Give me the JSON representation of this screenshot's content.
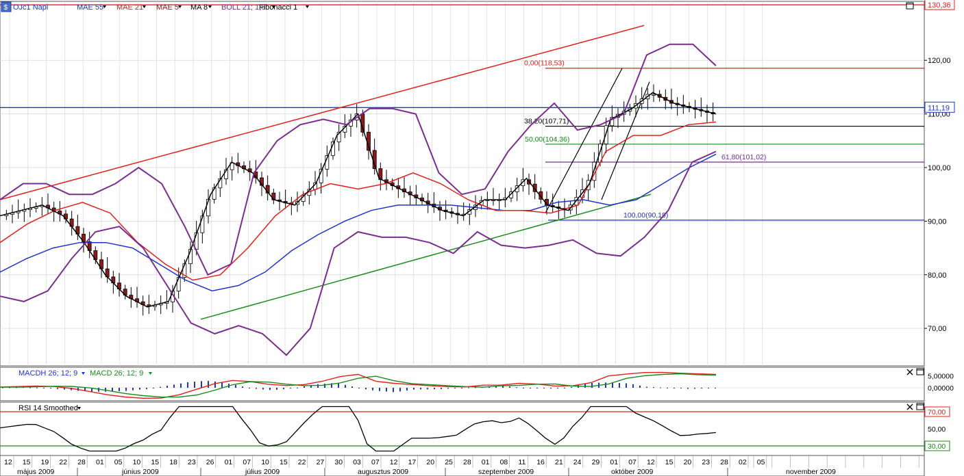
{
  "toolbar": {
    "instrument": "OJc1 Napi",
    "indicators": [
      {
        "label": "MAE 55",
        "color": "#1f35c8"
      },
      {
        "label": "MAE 21",
        "color": "#e0201c"
      },
      {
        "label": "MAE 5",
        "color": "#8b1a1a"
      },
      {
        "label": "MA 8",
        "color": "#000000"
      },
      {
        "label": "BOLL 21; 1,8",
        "color": "#7b2d8f"
      },
      {
        "label": "Fibonacci 1",
        "color": "#000000"
      }
    ]
  },
  "price_scale": {
    "ticks": [
      "120,00",
      "110,00",
      "100,00",
      "90,00",
      "80,00",
      "70,00"
    ],
    "tick_values": [
      120,
      110,
      100,
      90,
      80,
      70
    ],
    "badge_top": "130,36",
    "badge_current": "111,19"
  },
  "chart_data": {
    "type": "candlestick",
    "ylim": [
      63,
      131
    ],
    "date_labels": [
      "12",
      "15",
      "19",
      "22",
      "28",
      "01",
      "05",
      "10",
      "15",
      "18",
      "23",
      "26",
      "01",
      "07",
      "10",
      "15",
      "22",
      "27",
      "30",
      "03",
      "07",
      "12",
      "17",
      "20",
      "25",
      "28",
      "01",
      "08",
      "11",
      "16",
      "21",
      "24",
      "29",
      "01",
      "07",
      "12",
      "15",
      "20",
      "23",
      "28",
      "02",
      "05"
    ],
    "months": [
      "május 2009",
      "június 2009",
      "július 2009",
      "augusztus 2009",
      "szeptember 2009",
      "október 2009",
      "november 2009"
    ],
    "fibonacci": [
      {
        "label": "0,00(118,53)",
        "value": 118.53,
        "color": "#e0201c"
      },
      {
        "label": "38,20(107,71)",
        "value": 107.71,
        "color": "#000000"
      },
      {
        "label": "50,00(104,36)",
        "value": 104.36,
        "color": "#1a8a1a"
      },
      {
        "label": "61,80(101,02)",
        "value": 101.02,
        "color": "#7b2d8f"
      },
      {
        "label": "100,00(90,19)",
        "value": 90.19,
        "color": "#1f35c8"
      }
    ],
    "horizontal_lines": [
      {
        "value": 130.36,
        "color": "#e0201c"
      },
      {
        "value": 111.19,
        "color": "#1f35c8"
      }
    ],
    "series": [
      {
        "name": "MAE 55",
        "color": "#1f35c8",
        "values": [
          80.5,
          83,
          85,
          86,
          86,
          85,
          82,
          79,
          77,
          78,
          80.5,
          84.5,
          87.5,
          90,
          92,
          93,
          93,
          93,
          92.5,
          92,
          92,
          93.5,
          94,
          93,
          94,
          97,
          100,
          102.5
        ]
      },
      {
        "name": "MAE 21",
        "color": "#e0201c",
        "values": [
          86,
          89.5,
          92,
          93.5,
          91.5,
          86,
          82,
          79,
          80,
          85,
          91,
          95,
          97,
          96,
          97,
          99,
          97,
          94,
          92,
          92,
          91.5,
          93,
          103,
          106,
          106,
          108,
          108.5
        ]
      },
      {
        "name": "Close",
        "color": "#000000",
        "values": [
          91,
          92,
          93,
          91,
          86,
          80,
          76,
          74,
          75,
          84,
          95,
          101,
          99,
          94,
          93,
          97,
          106,
          110,
          98,
          96,
          94,
          92,
          91,
          94,
          94,
          98,
          93,
          92,
          97,
          109,
          111,
          114,
          112,
          111,
          110
        ]
      },
      {
        "name": "BOLL upper",
        "color": "#7b2d8f",
        "values": [
          94,
          97,
          97,
          95,
          95,
          97,
          100,
          97,
          89,
          80,
          82,
          99,
          105,
          108,
          109,
          108,
          111,
          111,
          110,
          99,
          95,
          96,
          103,
          108,
          112,
          107,
          108,
          110,
          121,
          123,
          123,
          119
        ]
      },
      {
        "name": "BOLL lower",
        "color": "#7b2d8f",
        "values": [
          76,
          75,
          77,
          83,
          88,
          89,
          85,
          78,
          71,
          69,
          70.5,
          69,
          65,
          70,
          85,
          88,
          87,
          87,
          86,
          84,
          88,
          85.5,
          85,
          85.5,
          86.5,
          84,
          83.5,
          87,
          92,
          101,
          103
        ]
      }
    ]
  },
  "macd_panel": {
    "labels": [
      {
        "label": "MACDH 26; 12; 9",
        "color": "#1f35c8"
      },
      {
        "label": "MACD 26; 12; 9",
        "color": "#1a8a1a"
      }
    ],
    "ticks": [
      "5,00000",
      "0,00000"
    ],
    "tick_values": [
      5,
      0
    ]
  },
  "rsi_panel": {
    "label": "RSI 14 Smoothed",
    "ticks": [
      "70,00",
      "50,00",
      "30,00"
    ],
    "tick_values": [
      70,
      50,
      30
    ]
  }
}
